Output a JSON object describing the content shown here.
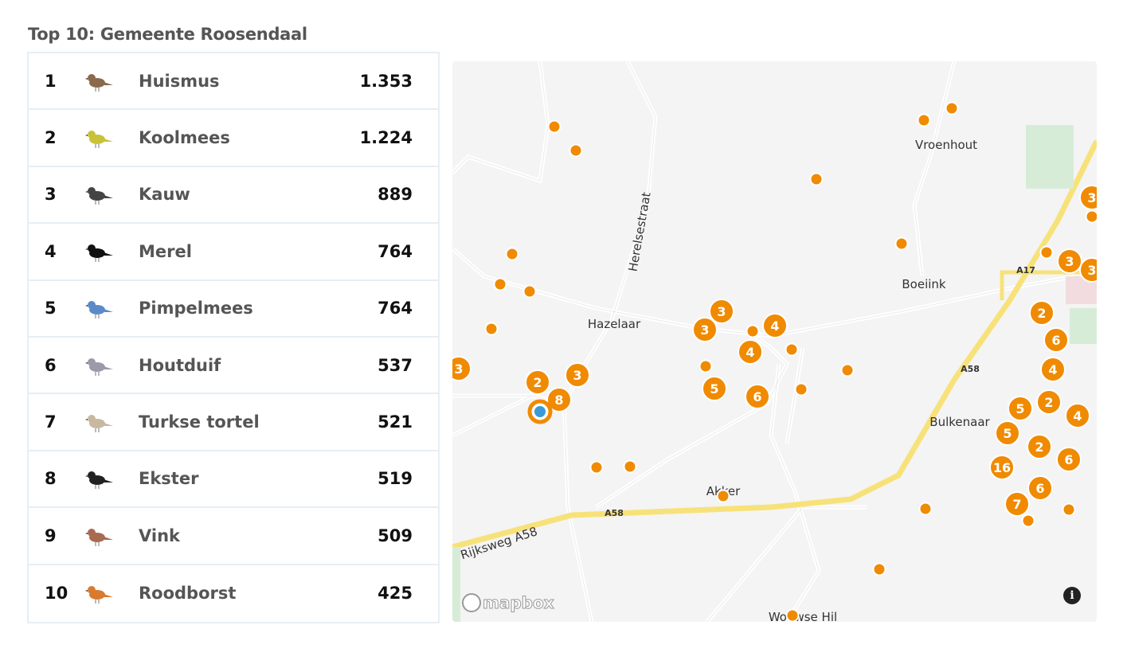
{
  "title": "Top 10: Gemeente Roosendaal",
  "rows": [
    {
      "rank": "1",
      "name": "Huismus",
      "count": "1.353",
      "bird_color": "#8a6a4a"
    },
    {
      "rank": "2",
      "name": "Koolmees",
      "count": "1.224",
      "bird_color": "#c8c23a"
    },
    {
      "rank": "3",
      "name": "Kauw",
      "count": "889",
      "bird_color": "#444"
    },
    {
      "rank": "4",
      "name": "Merel",
      "count": "764",
      "bird_color": "#111"
    },
    {
      "rank": "5",
      "name": "Pimpelmees",
      "count": "764",
      "bird_color": "#5a8ac8"
    },
    {
      "rank": "6",
      "name": "Houtduif",
      "count": "537",
      "bird_color": "#9a9aa8"
    },
    {
      "rank": "7",
      "name": "Turkse tortel",
      "count": "521",
      "bird_color": "#c8b8a0"
    },
    {
      "rank": "8",
      "name": "Ekster",
      "count": "519",
      "bird_color": "#222"
    },
    {
      "rank": "9",
      "name": "Vink",
      "count": "509",
      "bird_color": "#a86a50"
    },
    {
      "rank": "10",
      "name": "Roodborst",
      "count": "425",
      "bird_color": "#d87a30"
    }
  ],
  "map": {
    "marker_color": "#f08a00",
    "places": [
      "Vroenhout",
      "Herelsestraat",
      "Boeiink",
      "Hazelaar",
      "Bulkenaar",
      "Akker",
      "Rijksweg A58",
      "Wouwse Hil"
    ],
    "road_labels": [
      "A17",
      "A58",
      "A58"
    ],
    "clusters": [
      "3",
      "3",
      "4",
      "4",
      "3",
      "5",
      "6",
      "3",
      "2",
      "8",
      "3",
      "3",
      "2",
      "6",
      "4",
      "2",
      "5",
      "4",
      "5",
      "6",
      "2",
      "16",
      "6",
      "7",
      "3"
    ],
    "attribution": "mapbox",
    "info_icon": "info-icon"
  }
}
